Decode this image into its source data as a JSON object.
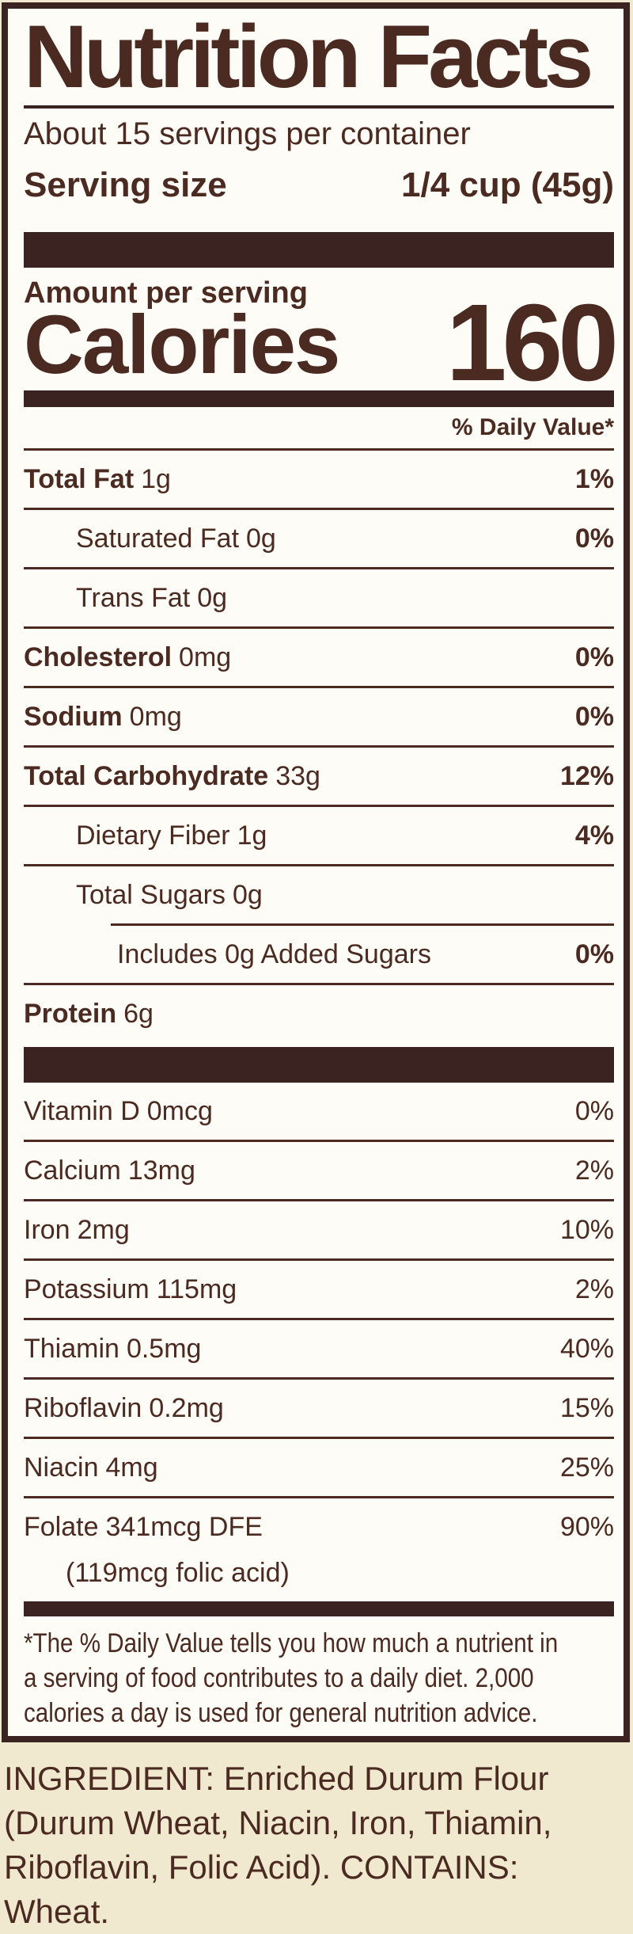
{
  "colors": {
    "ink": "#4b2a22",
    "bar": "#3b2321",
    "label_background": "#fdfcf6",
    "package_background": "#f0e9cf"
  },
  "label": {
    "title": "Nutrition Facts",
    "servings_per_container": "About 15 servings per container",
    "serving_size_label": "Serving size",
    "serving_size_value": "1/4 cup (45g)",
    "amount_per_serving": "Amount per serving",
    "calories_label": "Calories",
    "calories_value": "160",
    "daily_value_header": "% Daily Value*",
    "nutrient_rows": [
      {
        "name": "Total Fat",
        "amount": "1g",
        "dv": "1%"
      },
      {
        "name": "Saturated Fat",
        "amount": "0g",
        "dv": "0%"
      },
      {
        "name": "Trans Fat",
        "amount": "0g",
        "dv": ""
      },
      {
        "name": "Cholesterol",
        "amount": "0mg",
        "dv": "0%"
      },
      {
        "name": "Sodium",
        "amount": "0mg",
        "dv": "0%"
      },
      {
        "name": "Total Carbohydrate",
        "amount": "33g",
        "dv": "12%"
      },
      {
        "name": "Dietary Fiber",
        "amount": "1g",
        "dv": "4%"
      },
      {
        "name": "Total Sugars",
        "amount": "0g",
        "dv": ""
      },
      {
        "name": "Includes 0g Added Sugars",
        "amount": "",
        "dv": "0%"
      },
      {
        "name": "Protein",
        "amount": "6g",
        "dv": ""
      }
    ],
    "vitamin_rows": [
      {
        "name": "Vitamin D",
        "amount": "0mcg",
        "dv": "0%"
      },
      {
        "name": "Calcium",
        "amount": "13mg",
        "dv": "2%"
      },
      {
        "name": "Iron",
        "amount": "2mg",
        "dv": "10%"
      },
      {
        "name": "Potassium",
        "amount": "115mg",
        "dv": "2%"
      },
      {
        "name": "Thiamin",
        "amount": "0.5mg",
        "dv": "40%"
      },
      {
        "name": "Riboflavin",
        "amount": "0.2mg",
        "dv": "15%"
      },
      {
        "name": "Niacin",
        "amount": "4mg",
        "dv": "25%"
      },
      {
        "name": "Folate",
        "amount": "341mcg DFE",
        "dv": "90%",
        "note": "(119mcg folic acid)"
      }
    ],
    "footnote_lines": [
      "*The % Daily Value tells you how much a nutrient in",
      "a serving of food contributes to a daily diet. 2,000",
      "calories a day is used for general nutrition advice."
    ]
  },
  "ingredient_lines": [
    "INGREDIENT: Enriched Durum Flour",
    "(Durum Wheat, Niacin, Iron, Thiamin,",
    "Riboflavin, Folic Acid). CONTAINS:",
    "Wheat."
  ]
}
